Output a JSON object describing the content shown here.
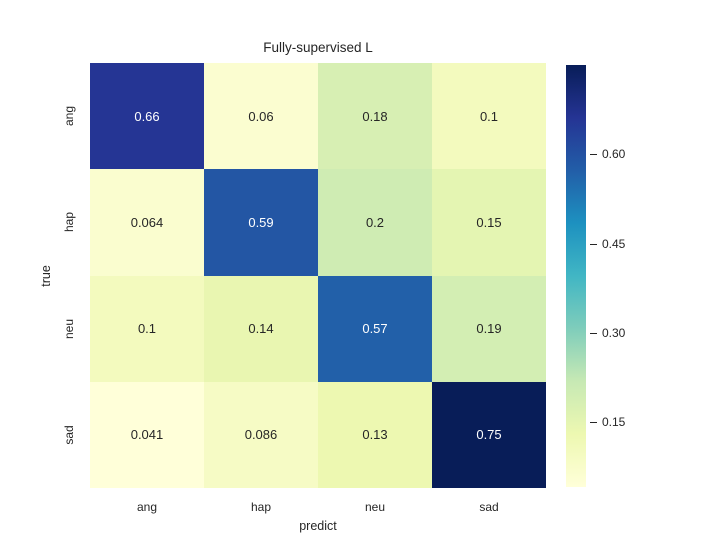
{
  "figure": {
    "background_color": "#ffffff",
    "text_color": "#262626"
  },
  "chart_data": {
    "type": "heatmap",
    "title": "Fully-supervised L",
    "xlabel": "predict",
    "ylabel": "true",
    "x_categories": [
      "ang",
      "hap",
      "neu",
      "sad"
    ],
    "y_categories": [
      "ang",
      "hap",
      "neu",
      "sad"
    ],
    "matrix": [
      [
        0.66,
        0.06,
        0.18,
        0.1
      ],
      [
        0.064,
        0.59,
        0.2,
        0.15
      ],
      [
        0.1,
        0.14,
        0.57,
        0.19
      ],
      [
        0.041,
        0.086,
        0.13,
        0.75
      ]
    ],
    "cell_labels": [
      [
        "0.66",
        "0.06",
        "0.18",
        "0.1"
      ],
      [
        "0.064",
        "0.59",
        "0.2",
        "0.15"
      ],
      [
        "0.1",
        "0.14",
        "0.57",
        "0.19"
      ],
      [
        "0.041",
        "0.086",
        "0.13",
        "0.75"
      ]
    ],
    "vmin": 0.041,
    "vmax": 0.75,
    "grid": false,
    "legend_position": "right-colorbar",
    "colormap": {
      "name": "YlGnBu",
      "anchors": [
        {
          "pos": 0.0,
          "color": "#ffffd9"
        },
        {
          "pos": 0.125,
          "color": "#edf8b1"
        },
        {
          "pos": 0.25,
          "color": "#c7e9b4"
        },
        {
          "pos": 0.375,
          "color": "#7fcdbb"
        },
        {
          "pos": 0.5,
          "color": "#41b6c4"
        },
        {
          "pos": 0.625,
          "color": "#1d91c0"
        },
        {
          "pos": 0.75,
          "color": "#225ea8"
        },
        {
          "pos": 0.875,
          "color": "#253494"
        },
        {
          "pos": 1.0,
          "color": "#081d58"
        }
      ]
    },
    "annotation_colors": {
      "on_light": "#262626",
      "on_dark": "#ffffff"
    },
    "colorbar": {
      "tick_labels": [
        "0.60",
        "0.45",
        "0.30",
        "0.15"
      ],
      "tick_values": [
        0.6,
        0.45,
        0.3,
        0.15
      ]
    }
  }
}
